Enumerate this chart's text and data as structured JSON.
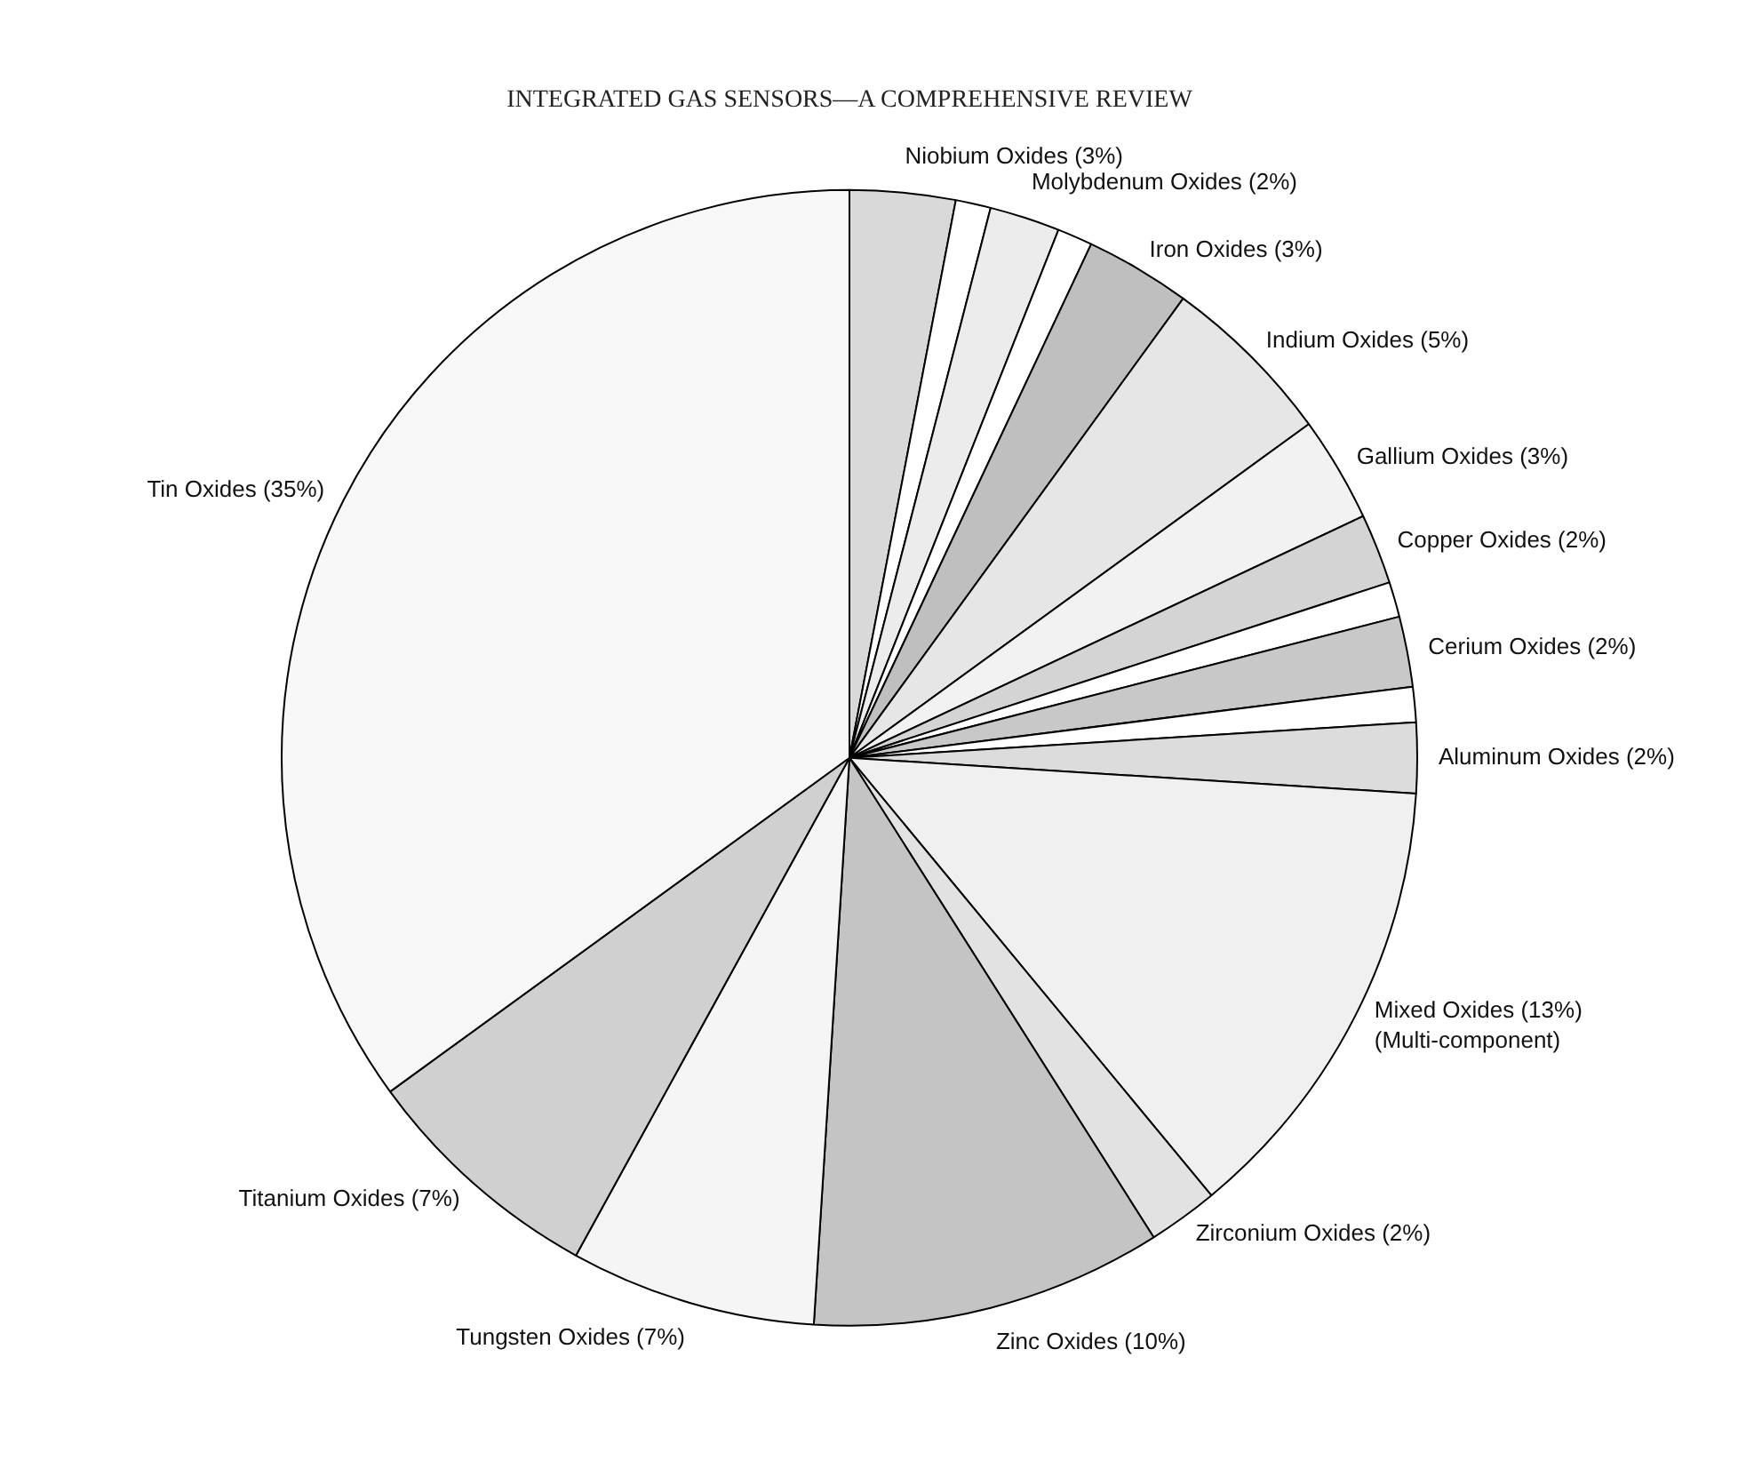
{
  "chart_data": {
    "type": "pie",
    "title": "INTEGRATED GAS SENSORS—A COMPREHENSIVE REVIEW",
    "categories": [
      "Niobium Oxides (3%)",
      null,
      "Molybdenum Oxides (2%)",
      null,
      "Iron Oxides (3%)",
      "Indium Oxides (5%)",
      "Gallium Oxides (3%)",
      "Copper Oxides (2%)",
      null,
      "Cerium Oxides (2%)",
      null,
      "Aluminum Oxides (2%)",
      "Mixed Oxides (13%)\n(Multi-component)",
      "Zirconium Oxides (2%)",
      "Zinc Oxides (10%)",
      "Tungsten Oxides (7%)",
      "Titanium Oxides (7%)",
      "Tin Oxides (35%)"
    ],
    "values": [
      3,
      1,
      2,
      1,
      3,
      5,
      3,
      2,
      1,
      2,
      1,
      2,
      13,
      2,
      10,
      7,
      7,
      35
    ],
    "colors": [
      "#d9d9d9",
      "#ffffff",
      "#ececec",
      "#ffffff",
      "#bfbfbf",
      "#e6e6e6",
      "#f2f2f2",
      "#d4d4d4",
      "#ffffff",
      "#c8c8c8",
      "#ffffff",
      "#dcdcdc",
      "#f0f0f0",
      "#e2e2e2",
      "#c4c4c4",
      "#f5f5f5",
      "#d0d0d0",
      "#f8f8f8"
    ],
    "legend": false
  }
}
